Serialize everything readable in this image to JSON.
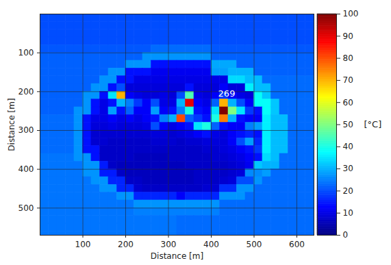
{
  "chart_data": {
    "type": "heatmap",
    "xlabel": "Distance [m]",
    "ylabel": "Distance [m]",
    "color": "jet",
    "grid": true,
    "xlim": [
      0,
      640
    ],
    "ylim": [
      570,
      0
    ],
    "xticks": [
      100,
      200,
      300,
      400,
      500,
      600
    ],
    "yticks": [
      100,
      200,
      300,
      400,
      500
    ],
    "colorbar": {
      "label": "[°C]",
      "range": [
        0,
        100
      ],
      "ticks": [
        0,
        10,
        20,
        30,
        40,
        50,
        60,
        70,
        80,
        90,
        100
      ]
    },
    "annotations": [
      {
        "text": "269",
        "x": 436,
        "y": 205
      }
    ],
    "x": [
      10,
      30,
      50,
      70,
      90,
      110,
      130,
      150,
      170,
      190,
      210,
      230,
      250,
      270,
      290,
      310,
      330,
      350,
      370,
      390,
      410,
      430,
      450,
      470,
      490,
      510,
      530,
      550,
      570,
      590,
      610,
      630
    ],
    "y": [
      10,
      30,
      50,
      70,
      90,
      110,
      130,
      150,
      170,
      190,
      210,
      230,
      250,
      270,
      290,
      310,
      330,
      350,
      370,
      390,
      410,
      430,
      450,
      470,
      490,
      510,
      530,
      550,
      570
    ],
    "values": [
      [
        20,
        20,
        20,
        20,
        20,
        20,
        20,
        20,
        20,
        20,
        20,
        20,
        20,
        20,
        20,
        20,
        20,
        20,
        20,
        20,
        20,
        20,
        20,
        20,
        20,
        20,
        20,
        20,
        20,
        20,
        20,
        20
      ],
      [
        20,
        20,
        20,
        20,
        20,
        20,
        20,
        20,
        20,
        20,
        20,
        20,
        20,
        20,
        20,
        20,
        20,
        20,
        20,
        20,
        20,
        20,
        20,
        20,
        20,
        20,
        20,
        20,
        20,
        20,
        20,
        20
      ],
      [
        20,
        20,
        20,
        20,
        20,
        20,
        20,
        20,
        20,
        20,
        20,
        20,
        20,
        20,
        20,
        20,
        20,
        20,
        20,
        20,
        20,
        20,
        20,
        20,
        20,
        20,
        20,
        20,
        20,
        20,
        20,
        20
      ],
      [
        20,
        20,
        20,
        20,
        20,
        20,
        20,
        20,
        20,
        20,
        20,
        20,
        20,
        20,
        20,
        20,
        20,
        20,
        20,
        20,
        20,
        20,
        20,
        20,
        20,
        20,
        20,
        20,
        20,
        20,
        20,
        20
      ],
      [
        21,
        21,
        21,
        21,
        21,
        21,
        21,
        21,
        21,
        21,
        21,
        21,
        21,
        23,
        23,
        23,
        23,
        23,
        23,
        23,
        21,
        21,
        21,
        21,
        21,
        21,
        21,
        21,
        21,
        21,
        21,
        21
      ],
      [
        22,
        22,
        22,
        22,
        22,
        22,
        22,
        22,
        22,
        22,
        22,
        22,
        27,
        27,
        27,
        27,
        27,
        27,
        27,
        27,
        22,
        22,
        22,
        22,
        22,
        22,
        22,
        22,
        22,
        22,
        22,
        22
      ],
      [
        22,
        22,
        22,
        22,
        22,
        22,
        22,
        22,
        22,
        22,
        27,
        27,
        27,
        14,
        14,
        14,
        14,
        14,
        14,
        14,
        29,
        29,
        29,
        22,
        22,
        22,
        22,
        22,
        22,
        22,
        22,
        22
      ],
      [
        22,
        22,
        22,
        22,
        22,
        22,
        22,
        22,
        27,
        27,
        14,
        14,
        14,
        11,
        11,
        11,
        11,
        11,
        11,
        11,
        28,
        28,
        30,
        30,
        30,
        22,
        22,
        22,
        22,
        22,
        22,
        22
      ],
      [
        22,
        22,
        22,
        22,
        22,
        22,
        22,
        27,
        27,
        14,
        14,
        10,
        10,
        10,
        10,
        10,
        10,
        10,
        10,
        10,
        10,
        10,
        34,
        34,
        31,
        31,
        23,
        23,
        23,
        23,
        23,
        23
      ],
      [
        22,
        22,
        22,
        22,
        22,
        22,
        27,
        27,
        14,
        20,
        9,
        9,
        9,
        9,
        9,
        9,
        9,
        14,
        9,
        9,
        9,
        12,
        9,
        9,
        36,
        31,
        31,
        23,
        23,
        23,
        23,
        23
      ],
      [
        22,
        22,
        22,
        22,
        22,
        27,
        27,
        14,
        35,
        70,
        12,
        10,
        9,
        9,
        10,
        9,
        20,
        45,
        10,
        9,
        12,
        18,
        12,
        10,
        9,
        38,
        32,
        23,
        23,
        23,
        23,
        23
      ],
      [
        22,
        22,
        22,
        22,
        22,
        27,
        14,
        10,
        14,
        30,
        25,
        18,
        12,
        20,
        10,
        10,
        30,
        90,
        12,
        10,
        22,
        70,
        30,
        20,
        12,
        38,
        38,
        32,
        23,
        23,
        23,
        23
      ],
      [
        22,
        22,
        22,
        22,
        27,
        27,
        14,
        10,
        28,
        14,
        22,
        12,
        12,
        28,
        12,
        14,
        25,
        40,
        14,
        12,
        35,
        100,
        50,
        35,
        18,
        14,
        38,
        32,
        23,
        23,
        23,
        23
      ],
      [
        23,
        23,
        23,
        23,
        27,
        14,
        10,
        10,
        12,
        10,
        12,
        10,
        12,
        14,
        25,
        30,
        80,
        22,
        18,
        14,
        40,
        75,
        30,
        14,
        12,
        12,
        36,
        31,
        31,
        23,
        23,
        23
      ],
      [
        23,
        23,
        23,
        23,
        27,
        14,
        9,
        9,
        10,
        9,
        9,
        9,
        10,
        20,
        12,
        10,
        12,
        14,
        35,
        40,
        22,
        14,
        12,
        12,
        25,
        28,
        36,
        31,
        31,
        23,
        23,
        23
      ],
      [
        23,
        23,
        23,
        23,
        27,
        14,
        8,
        8,
        8,
        8,
        8,
        8,
        8,
        9,
        9,
        8,
        9,
        10,
        12,
        14,
        10,
        9,
        12,
        14,
        16,
        14,
        36,
        31,
        31,
        23,
        23,
        23
      ],
      [
        23,
        23,
        23,
        23,
        27,
        14,
        8,
        8,
        7,
        7,
        7,
        7,
        7,
        8,
        8,
        8,
        7,
        8,
        8,
        9,
        9,
        9,
        12,
        20,
        28,
        16,
        36,
        31,
        31,
        23,
        23,
        23
      ],
      [
        23,
        23,
        23,
        23,
        27,
        14,
        14,
        7,
        7,
        7,
        7,
        7,
        7,
        7,
        7,
        7,
        7,
        7,
        7,
        8,
        8,
        9,
        10,
        12,
        14,
        18,
        36,
        31,
        31,
        23,
        23,
        23
      ],
      [
        24,
        24,
        24,
        24,
        27,
        27,
        14,
        7,
        7,
        7,
        7,
        6,
        6,
        6,
        6,
        7,
        7,
        7,
        7,
        7,
        8,
        8,
        9,
        10,
        12,
        14,
        34,
        31,
        23,
        23,
        23,
        23
      ],
      [
        24,
        24,
        24,
        24,
        24,
        27,
        27,
        15,
        7,
        6,
        6,
        6,
        6,
        6,
        6,
        6,
        6,
        7,
        7,
        7,
        7,
        7,
        8,
        9,
        11,
        32,
        30,
        30,
        23,
        23,
        23,
        23
      ],
      [
        24,
        24,
        24,
        24,
        24,
        27,
        27,
        15,
        15,
        7,
        6,
        6,
        6,
        6,
        6,
        6,
        6,
        6,
        7,
        7,
        7,
        7,
        8,
        9,
        26,
        26,
        28,
        23,
        23,
        23,
        23,
        23
      ],
      [
        24,
        24,
        24,
        24,
        24,
        24,
        27,
        27,
        16,
        16,
        7,
        7,
        6,
        6,
        6,
        6,
        6,
        6,
        7,
        7,
        7,
        8,
        9,
        20,
        20,
        27,
        23,
        23,
        23,
        23,
        23,
        23
      ],
      [
        24,
        24,
        24,
        24,
        24,
        24,
        24,
        27,
        27,
        16,
        16,
        8,
        7,
        7,
        7,
        7,
        7,
        7,
        7,
        8,
        8,
        17,
        17,
        27,
        27,
        23,
        23,
        23,
        23,
        23,
        23,
        23
      ],
      [
        24,
        24,
        24,
        24,
        24,
        24,
        24,
        24,
        24,
        27,
        27,
        16,
        16,
        16,
        16,
        16,
        12,
        16,
        16,
        16,
        16,
        27,
        27,
        27,
        23,
        23,
        23,
        23,
        23,
        23,
        23,
        23
      ],
      [
        24,
        24,
        24,
        24,
        24,
        24,
        24,
        24,
        24,
        24,
        24,
        27,
        27,
        27,
        27,
        27,
        27,
        27,
        27,
        27,
        27,
        23,
        23,
        23,
        23,
        23,
        23,
        23,
        23,
        23,
        23,
        23
      ],
      [
        24,
        24,
        24,
        24,
        24,
        24,
        24,
        24,
        24,
        24,
        24,
        25,
        25,
        25,
        25,
        25,
        25,
        25,
        25,
        25,
        25,
        23,
        23,
        23,
        23,
        23,
        23,
        23,
        23,
        23,
        23,
        23
      ],
      [
        24,
        24,
        24,
        24,
        24,
        24,
        24,
        24,
        24,
        24,
        24,
        24,
        24,
        24,
        24,
        24,
        23,
        23,
        23,
        23,
        23,
        23,
        23,
        23,
        23,
        23,
        23,
        23,
        23,
        23,
        23,
        23
      ],
      [
        24,
        24,
        24,
        24,
        24,
        24,
        24,
        24,
        24,
        24,
        24,
        24,
        24,
        24,
        24,
        24,
        23,
        23,
        23,
        23,
        23,
        23,
        23,
        23,
        23,
        23,
        23,
        23,
        23,
        23,
        23,
        23
      ],
      [
        24,
        24,
        24,
        24,
        24,
        24,
        24,
        24,
        24,
        24,
        24,
        24,
        24,
        24,
        24,
        24,
        23,
        23,
        23,
        23,
        23,
        23,
        23,
        23,
        23,
        23,
        23,
        23,
        23,
        23,
        23,
        23
      ]
    ]
  }
}
